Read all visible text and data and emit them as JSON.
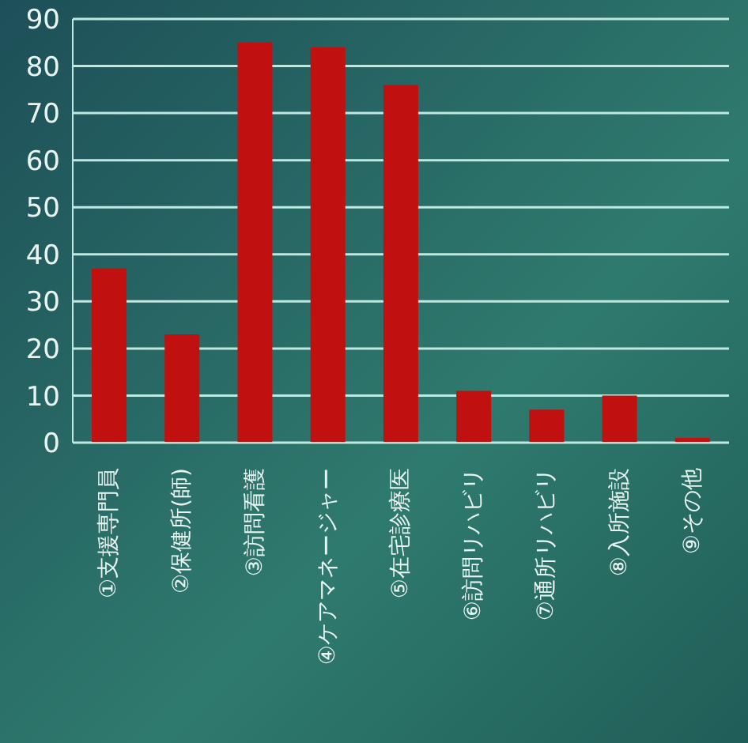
{
  "chart_data": {
    "type": "bar",
    "categories": [
      "①支援専門員",
      "②保健所(師)",
      "③訪問看護",
      "④ケアマネージャー",
      "⑤在宅診療医",
      "⑥訪問リハビリ",
      "⑦通所リハビリ",
      "⑧入所施設",
      "⑨その他"
    ],
    "values": [
      37,
      23,
      85,
      84,
      76,
      11,
      7,
      10,
      1
    ],
    "color": "#c01010",
    "ylim": [
      0,
      90
    ],
    "yticks": [
      0,
      10,
      20,
      30,
      40,
      50,
      60,
      70,
      80,
      90
    ],
    "grid": "y"
  }
}
